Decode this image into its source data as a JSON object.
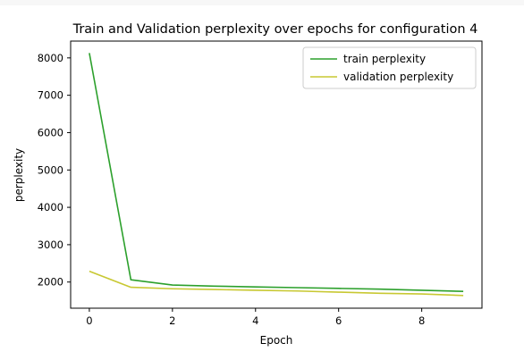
{
  "chart_data": {
    "type": "line",
    "title": "Train and Validation perplexity over epochs for configuration 4",
    "xlabel": "Epoch",
    "ylabel": "perplexity",
    "xlim": [
      -0.45,
      9.45
    ],
    "ylim": [
      1300,
      8450
    ],
    "xticks": [
      0,
      2,
      4,
      6,
      8
    ],
    "yticks": [
      2000,
      3000,
      4000,
      5000,
      6000,
      7000,
      8000
    ],
    "grid": false,
    "legend_position": "top-right",
    "x": [
      0,
      1,
      2,
      3,
      4,
      5,
      6,
      7,
      8,
      9
    ],
    "series": [
      {
        "name": "train perplexity",
        "color": "#2ca02c",
        "values": [
          8130,
          2060,
          1920,
          1890,
          1870,
          1850,
          1830,
          1810,
          1780,
          1750
        ]
      },
      {
        "name": "validation perplexity",
        "color": "#c8c832",
        "values": [
          2290,
          1860,
          1820,
          1800,
          1780,
          1760,
          1730,
          1700,
          1680,
          1640
        ]
      }
    ]
  }
}
